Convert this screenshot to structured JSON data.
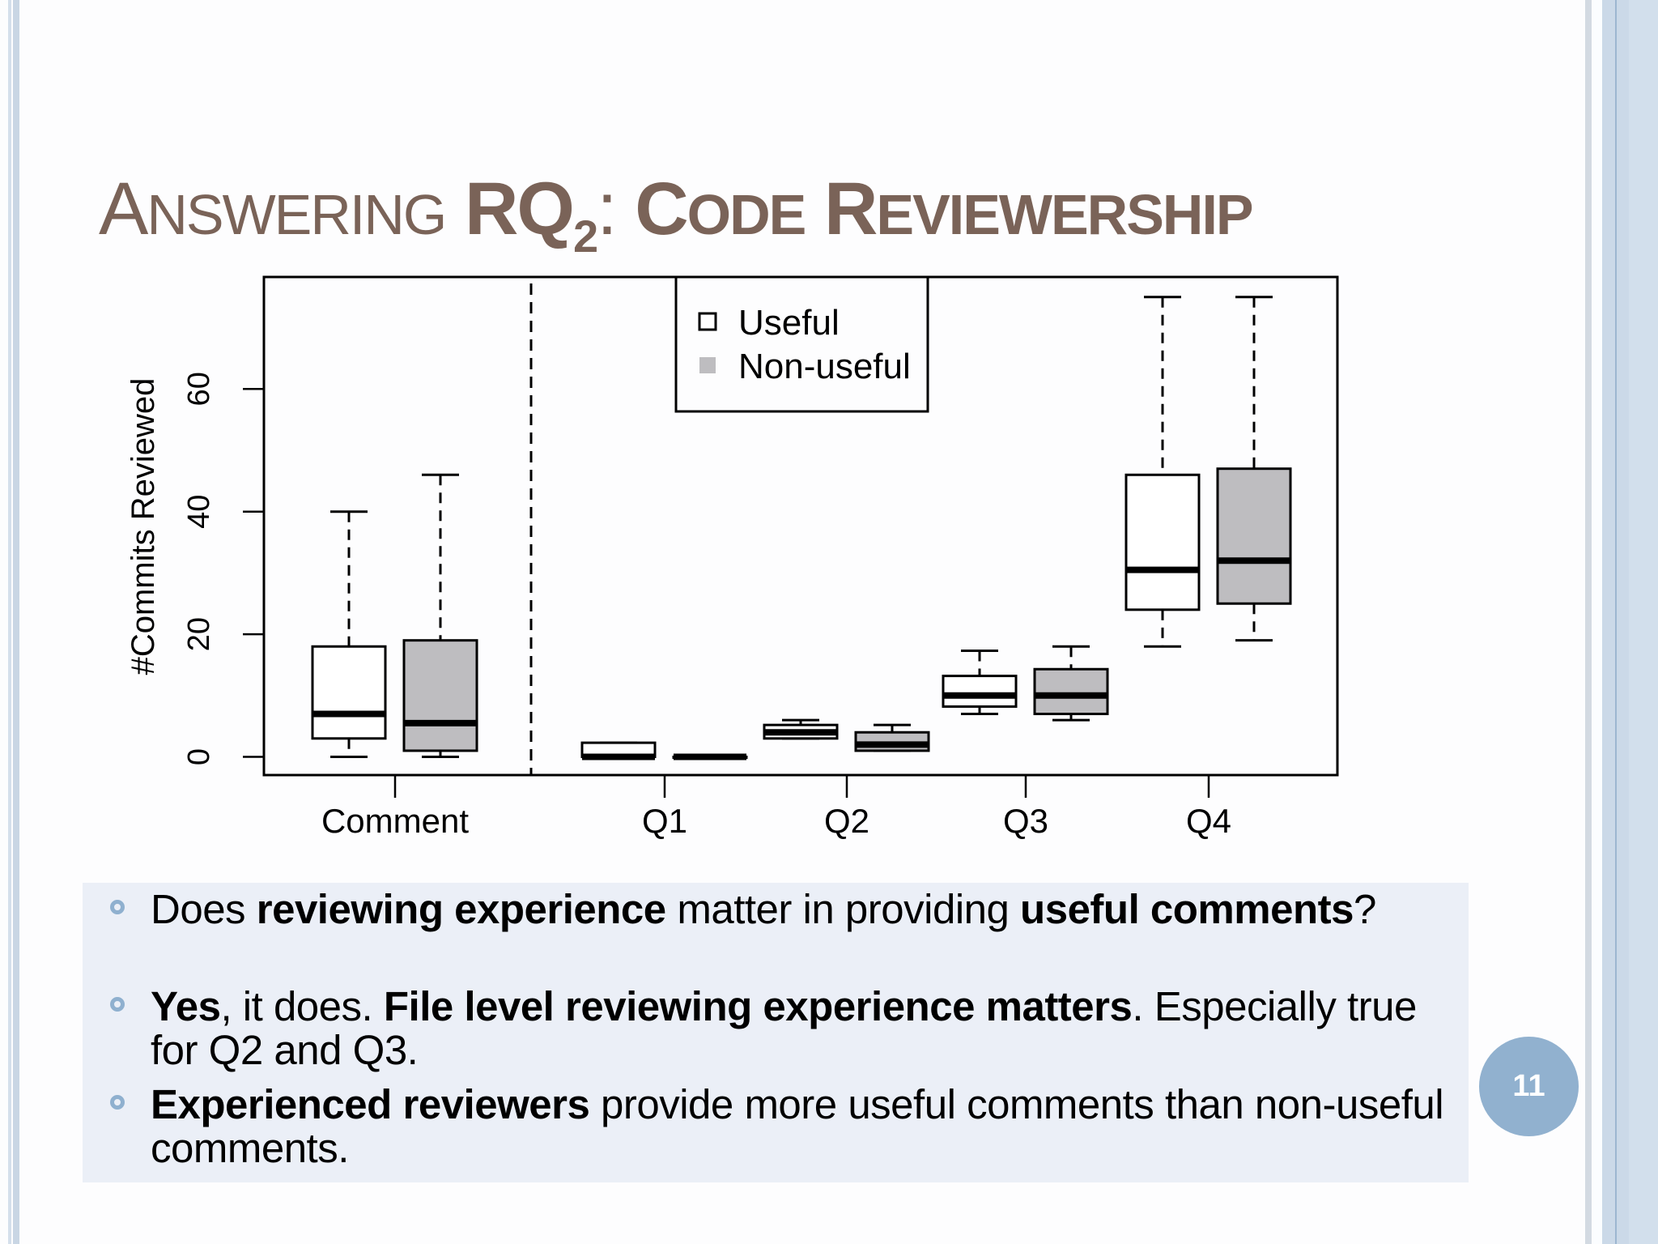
{
  "slide": {
    "title": {
      "part1_initial": "A",
      "part1_rest": "NSWERING",
      "rq": "RQ",
      "rq_sub": "2",
      "colon": ":",
      "part2_initial": "C",
      "part2_rest": "ODE",
      "part3_initial": "R",
      "part3_rest": "EVIEWERSHIP"
    },
    "title_color": "#7a6358",
    "page_number": "11",
    "accent_color": "#91b1cf",
    "panel_color": "#ebeff7"
  },
  "bullets": [
    {
      "segments": [
        {
          "text": "Does ",
          "bold": false
        },
        {
          "text": "reviewing experience",
          "bold": true
        },
        {
          "text": " matter in providing ",
          "bold": false
        },
        {
          "text": "useful comments",
          "bold": true
        },
        {
          "text": "?",
          "bold": false
        }
      ]
    },
    {
      "segments": [
        {
          "text": "Yes",
          "bold": true
        },
        {
          "text": ", it does. ",
          "bold": false
        },
        {
          "text": "File level reviewing experience matters",
          "bold": true
        },
        {
          "text": ". Especially true for Q2 and Q3.",
          "bold": false
        }
      ]
    },
    {
      "segments": [
        {
          "text": "Experienced reviewers",
          "bold": true
        },
        {
          "text": " provide more useful comments than non-useful comments.",
          "bold": false
        }
      ]
    }
  ],
  "chart_data": {
    "type": "boxplot",
    "title": "",
    "xlabel": "",
    "ylabel": "#Commits Reviewed",
    "ylim": [
      0,
      78
    ],
    "yticks": [
      0,
      20,
      40,
      60
    ],
    "categories": [
      "Comment",
      "Q1",
      "Q2",
      "Q3",
      "Q4"
    ],
    "legend": {
      "position": "top-center",
      "entries": [
        {
          "label": "Useful",
          "fill": "#ffffff"
        },
        {
          "label": "Non-useful",
          "fill": "#bebdc0"
        }
      ]
    },
    "separator_after": "Comment",
    "grid": false,
    "series": [
      {
        "name": "Useful",
        "fill": "#ffffff",
        "boxes": [
          {
            "category": "Comment",
            "low": 0,
            "q1": 3,
            "median": 7,
            "q3": 18,
            "high": 40
          },
          {
            "category": "Q1",
            "low": 0,
            "q1": 0,
            "median": 0,
            "q3": 2.3,
            "high": 2.3
          },
          {
            "category": "Q2",
            "low": 3,
            "q1": 3,
            "median": 4,
            "q3": 5.2,
            "high": 6
          },
          {
            "category": "Q3",
            "low": 7,
            "q1": 8.2,
            "median": 10,
            "q3": 13.2,
            "high": 17.3
          },
          {
            "category": "Q4",
            "low": 18,
            "q1": 24,
            "median": 30.5,
            "q3": 46,
            "high": 75
          }
        ]
      },
      {
        "name": "Non-useful",
        "fill": "#bebdc0",
        "boxes": [
          {
            "category": "Comment",
            "low": 0,
            "q1": 1,
            "median": 5.5,
            "q3": 19,
            "high": 46
          },
          {
            "category": "Q1",
            "low": 0,
            "q1": 0,
            "median": 0,
            "q3": 0,
            "high": 0
          },
          {
            "category": "Q2",
            "low": 1,
            "q1": 1,
            "median": 2,
            "q3": 4,
            "high": 5.2
          },
          {
            "category": "Q3",
            "low": 6,
            "q1": 7,
            "median": 10,
            "q3": 14.3,
            "high": 18
          },
          {
            "category": "Q4",
            "low": 19,
            "q1": 25,
            "median": 32,
            "q3": 47,
            "high": 75
          }
        ]
      }
    ]
  }
}
